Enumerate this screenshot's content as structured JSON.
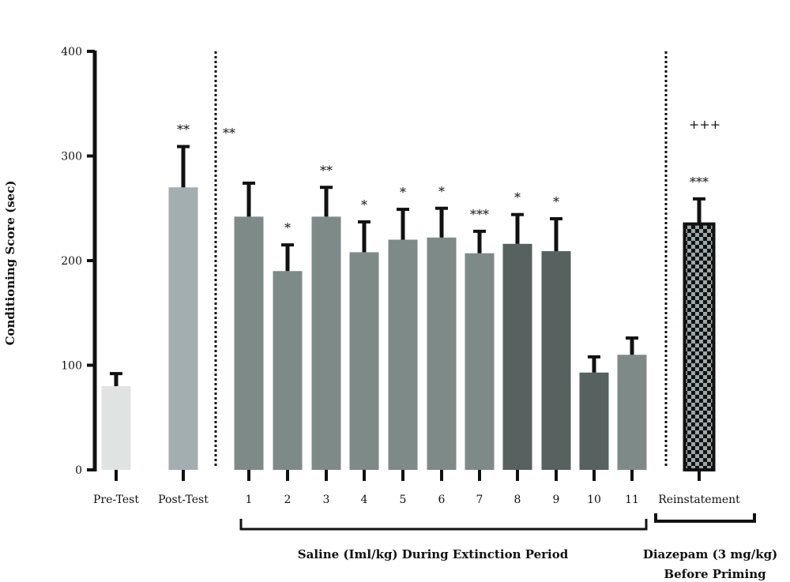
{
  "chart_data": {
    "type": "bar",
    "title": "",
    "ylabel": "Conditioning Score (sec)",
    "xlabel": "",
    "ylim": [
      0,
      400
    ],
    "yticks": [
      0,
      100,
      200,
      300,
      400
    ],
    "grid": false,
    "categories": [
      "Pre-Test",
      "Post-Test",
      "1",
      "2",
      "3",
      "4",
      "5",
      "6",
      "7",
      "8",
      "9",
      "10",
      "11",
      "Reinstatement"
    ],
    "values": [
      80,
      270,
      242,
      190,
      242,
      208,
      220,
      222,
      207,
      216,
      209,
      93,
      110,
      235
    ],
    "errors": [
      12,
      39,
      32,
      25,
      28,
      29,
      29,
      28,
      21,
      28,
      31,
      15,
      16,
      24
    ],
    "significance": [
      "",
      "**",
      "",
      "*",
      "**",
      "*",
      "*",
      "*",
      "***",
      "*",
      "*",
      "",
      "",
      "***"
    ],
    "colors": [
      "#dfe3e1",
      "#a3aeb0",
      "#7e8a87",
      "#7e8a87",
      "#7e8a87",
      "#7e8a87",
      "#7e8a87",
      "#7e8a87",
      "#7e8a87",
      "#566160",
      "#566160",
      "#566160",
      "#7e8a87",
      "checker"
    ],
    "annotations": [
      {
        "text": "**",
        "position": "left-of-extension-divider"
      },
      {
        "text": "+++",
        "position": "above-reinstatement"
      }
    ],
    "groups": [
      {
        "label_line1": "Saline (Iml/kg) During Extinction Period",
        "label_line2": "",
        "from": "1",
        "to": "11"
      },
      {
        "label_line1": "Diazepam (3 mg/kg)",
        "label_line2": "Before Priming",
        "from": "Reinstatement",
        "to": "Reinstatement"
      }
    ]
  }
}
